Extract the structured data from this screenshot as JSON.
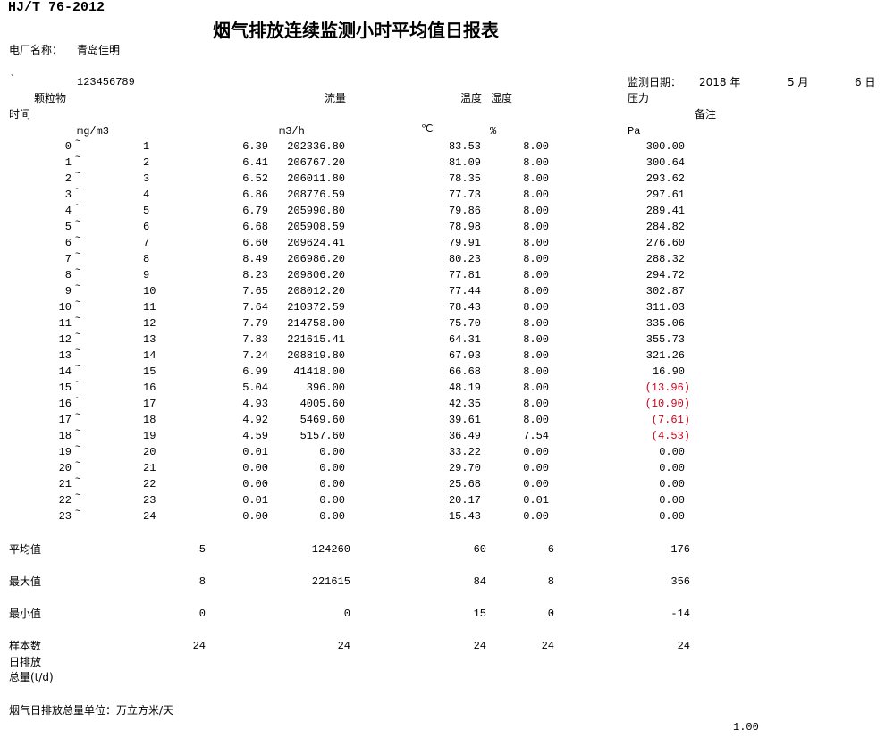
{
  "header": {
    "standard": "HJ/T 76-2012",
    "title": "烟气排放连续监测小时平均值日报表",
    "plant_label": "电厂名称：",
    "plant_name": "青岛佳明",
    "mark": "`",
    "code": "123456789",
    "date_label": "监测日期：",
    "year": "2018 年",
    "month": "5 月",
    "day": "6 日"
  },
  "columns": {
    "time": "时间",
    "particulate": "颗粒物",
    "flow": "流量",
    "temperature": "温度",
    "humidity": "湿度",
    "pressure": "压力",
    "remark": "备注",
    "unit_particulate": "mg/m3",
    "unit_flow": "m3/h",
    "unit_temperature": "℃",
    "unit_humidity": "%",
    "unit_pressure": "Pa"
  },
  "separator": "~",
  "negative_color": "#d0021b",
  "rows": [
    {
      "from": "0",
      "to": "1",
      "particulate": "6.39",
      "flow": "202336.80",
      "temperature": "83.53",
      "humidity": "8.00",
      "pressure": "300.00"
    },
    {
      "from": "1",
      "to": "2",
      "particulate": "6.41",
      "flow": "206767.20",
      "temperature": "81.09",
      "humidity": "8.00",
      "pressure": "300.64"
    },
    {
      "from": "2",
      "to": "3",
      "particulate": "6.52",
      "flow": "206011.80",
      "temperature": "78.35",
      "humidity": "8.00",
      "pressure": "293.62"
    },
    {
      "from": "3",
      "to": "4",
      "particulate": "6.86",
      "flow": "208776.59",
      "temperature": "77.73",
      "humidity": "8.00",
      "pressure": "297.61"
    },
    {
      "from": "4",
      "to": "5",
      "particulate": "6.79",
      "flow": "205990.80",
      "temperature": "79.86",
      "humidity": "8.00",
      "pressure": "289.41"
    },
    {
      "from": "5",
      "to": "6",
      "particulate": "6.68",
      "flow": "205908.59",
      "temperature": "78.98",
      "humidity": "8.00",
      "pressure": "284.82"
    },
    {
      "from": "6",
      "to": "7",
      "particulate": "6.60",
      "flow": "209624.41",
      "temperature": "79.91",
      "humidity": "8.00",
      "pressure": "276.60"
    },
    {
      "from": "7",
      "to": "8",
      "particulate": "8.49",
      "flow": "206986.20",
      "temperature": "80.23",
      "humidity": "8.00",
      "pressure": "288.32"
    },
    {
      "from": "8",
      "to": "9",
      "particulate": "8.23",
      "flow": "209806.20",
      "temperature": "77.81",
      "humidity": "8.00",
      "pressure": "294.72"
    },
    {
      "from": "9",
      "to": "10",
      "particulate": "7.65",
      "flow": "208012.20",
      "temperature": "77.44",
      "humidity": "8.00",
      "pressure": "302.87"
    },
    {
      "from": "10",
      "to": "11",
      "particulate": "7.64",
      "flow": "210372.59",
      "temperature": "78.43",
      "humidity": "8.00",
      "pressure": "311.03"
    },
    {
      "from": "11",
      "to": "12",
      "particulate": "7.79",
      "flow": "214758.00",
      "temperature": "75.70",
      "humidity": "8.00",
      "pressure": "335.06"
    },
    {
      "from": "12",
      "to": "13",
      "particulate": "7.83",
      "flow": "221615.41",
      "temperature": "64.31",
      "humidity": "8.00",
      "pressure": "355.73"
    },
    {
      "from": "13",
      "to": "14",
      "particulate": "7.24",
      "flow": "208819.80",
      "temperature": "67.93",
      "humidity": "8.00",
      "pressure": "321.26"
    },
    {
      "from": "14",
      "to": "15",
      "particulate": "6.99",
      "flow": "41418.00",
      "temperature": "66.68",
      "humidity": "8.00",
      "pressure": "16.90"
    },
    {
      "from": "15",
      "to": "16",
      "particulate": "5.04",
      "flow": "396.00",
      "temperature": "48.19",
      "humidity": "8.00",
      "pressure": "(13.96)",
      "negative": true
    },
    {
      "from": "16",
      "to": "17",
      "particulate": "4.93",
      "flow": "4005.60",
      "temperature": "42.35",
      "humidity": "8.00",
      "pressure": "(10.90)",
      "negative": true
    },
    {
      "from": "17",
      "to": "18",
      "particulate": "4.92",
      "flow": "5469.60",
      "temperature": "39.61",
      "humidity": "8.00",
      "pressure": "(7.61)",
      "negative": true
    },
    {
      "from": "18",
      "to": "19",
      "particulate": "4.59",
      "flow": "5157.60",
      "temperature": "36.49",
      "humidity": "7.54",
      "pressure": "(4.53)",
      "negative": true
    },
    {
      "from": "19",
      "to": "20",
      "particulate": "0.01",
      "flow": "0.00",
      "temperature": "33.22",
      "humidity": "0.00",
      "pressure": "0.00"
    },
    {
      "from": "20",
      "to": "21",
      "particulate": "0.00",
      "flow": "0.00",
      "temperature": "29.70",
      "humidity": "0.00",
      "pressure": "0.00"
    },
    {
      "from": "21",
      "to": "22",
      "particulate": "0.00",
      "flow": "0.00",
      "temperature": "25.68",
      "humidity": "0.00",
      "pressure": "0.00"
    },
    {
      "from": "22",
      "to": "23",
      "particulate": "0.01",
      "flow": "0.00",
      "temperature": "20.17",
      "humidity": "0.01",
      "pressure": "0.00"
    },
    {
      "from": "23",
      "to": "24",
      "particulate": "0.00",
      "flow": "0.00",
      "temperature": "15.43",
      "humidity": "0.00",
      "pressure": "0.00"
    }
  ],
  "summary": [
    {
      "label": "平均值",
      "particulate": "5",
      "flow": "124260",
      "temperature": "60",
      "humidity": "6",
      "pressure": "176"
    },
    {
      "label": "最大值",
      "particulate": "8",
      "flow": "221615",
      "temperature": "84",
      "humidity": "8",
      "pressure": "356"
    },
    {
      "label": "最小值",
      "particulate": "0",
      "flow": "0",
      "temperature": "15",
      "humidity": "0",
      "pressure": "-14"
    },
    {
      "label": "样本数",
      "particulate": "24",
      "flow": "24",
      "temperature": "24",
      "humidity": "24",
      "pressure": "24"
    }
  ],
  "footer": {
    "daily_emission_label_1": "日排放",
    "daily_emission_label_2": "总量(t/d)",
    "flue_gas_unit_label": "烟气日排放总量单位：万立方米/天",
    "flue_gas_total": "1.00"
  }
}
